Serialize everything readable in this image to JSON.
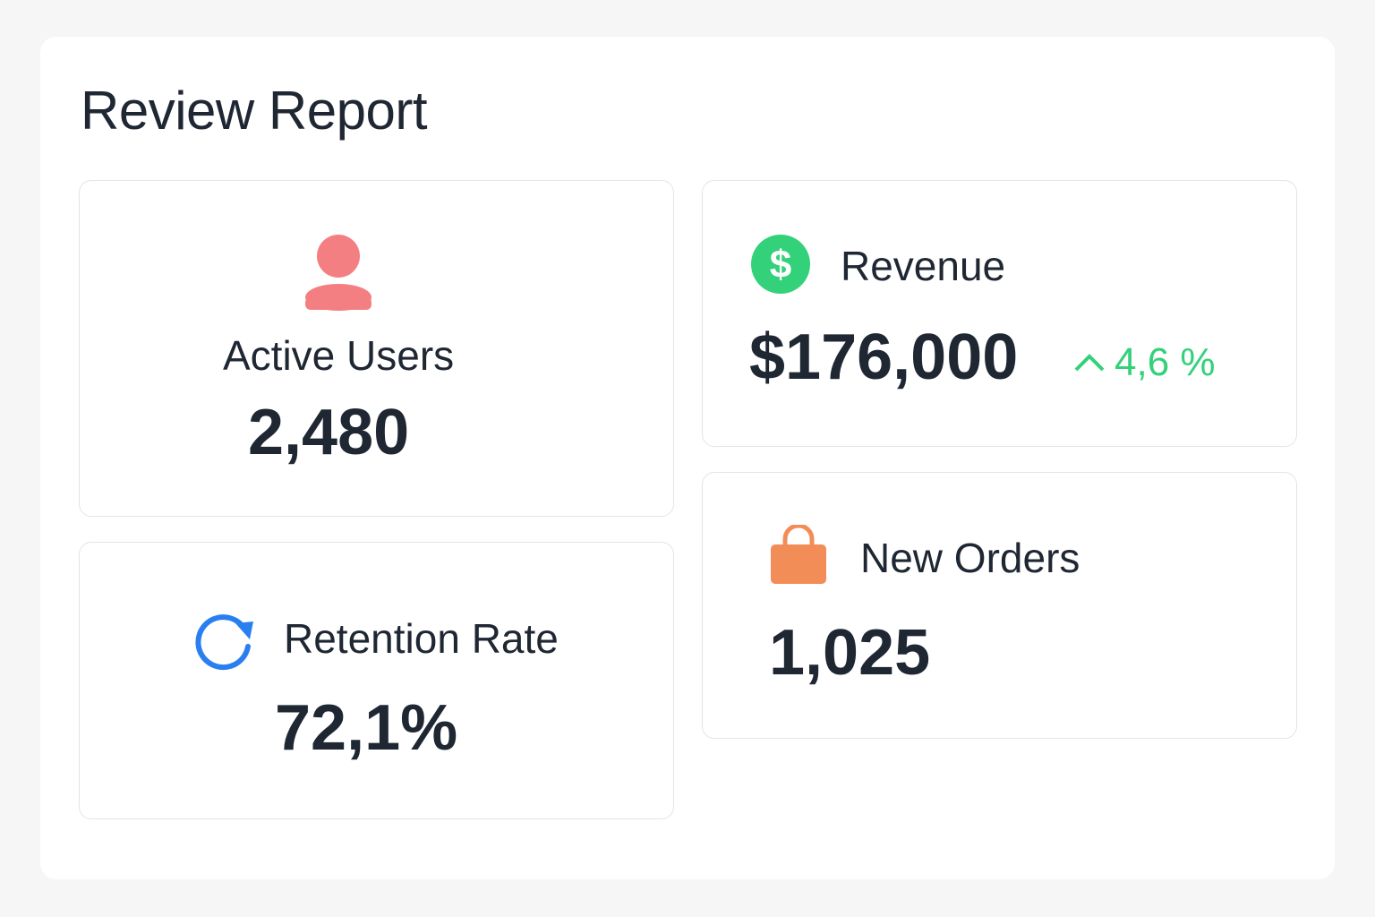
{
  "title": "Review Report",
  "cards": {
    "active_users": {
      "label": "Active Users",
      "value": "2,480",
      "icon": "user-icon",
      "color": "#f47f82"
    },
    "revenue": {
      "label": "Revenue",
      "value": "$176,000",
      "change": "4,6 %",
      "icon": "dollar-icon",
      "color": "#33d17a"
    },
    "retention": {
      "label": "Retention Rate",
      "value": "72,1%",
      "icon": "refresh-icon",
      "color": "#2a7ff0"
    },
    "new_orders": {
      "label": "New Orders",
      "value": "1,025",
      "icon": "shopping-bag-icon",
      "color": "#f38d58"
    }
  }
}
